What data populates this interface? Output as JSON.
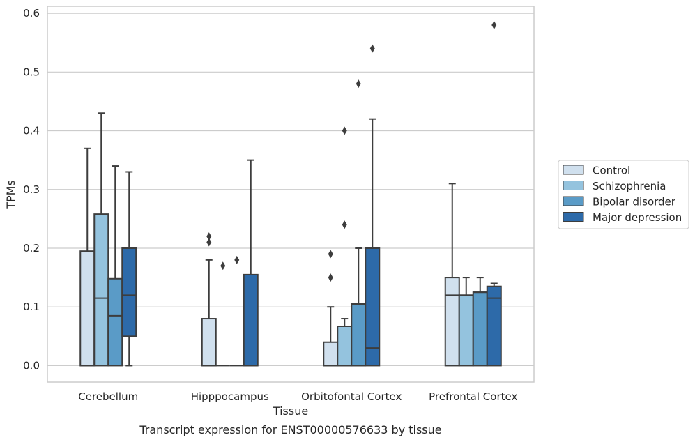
{
  "chart_data": {
    "type": "box",
    "title": "Transcript expression for ENST00000576633 by tissue",
    "xlabel": "Tissue",
    "ylabel": "TPMs",
    "ylim": [
      -0.028,
      0.612
    ],
    "yticks": [
      "0.0",
      "0.1",
      "0.2",
      "0.3",
      "0.4",
      "0.5",
      "0.6"
    ],
    "grid": true,
    "legend_position": "right",
    "categories": [
      "Cerebellum",
      "Hipppocampus",
      "Orbitofontal Cortex",
      "Prefrontal Cortex"
    ],
    "series": [
      {
        "name": "Control",
        "color": "#d0e0ee"
      },
      {
        "name": "Schizophrenia",
        "color": "#94c3de"
      },
      {
        "name": "Bipolar disorder",
        "color": "#5a9bc7"
      },
      {
        "name": "Major depression",
        "color": "#2d6aa9"
      }
    ],
    "boxes": [
      [
        {
          "q1": 0.0,
          "median": 0.0,
          "q3": 0.195,
          "whisker_low": 0.0,
          "whisker_high": 0.37,
          "outliers": []
        },
        {
          "q1": 0.0,
          "median": 0.115,
          "q3": 0.258,
          "whisker_low": 0.0,
          "whisker_high": 0.43,
          "outliers": []
        },
        {
          "q1": 0.0,
          "median": 0.085,
          "q3": 0.148,
          "whisker_low": 0.0,
          "whisker_high": 0.34,
          "outliers": []
        },
        {
          "q1": 0.05,
          "median": 0.12,
          "q3": 0.2,
          "whisker_low": 0.0,
          "whisker_high": 0.33,
          "outliers": []
        }
      ],
      [
        {
          "q1": 0.0,
          "median": 0.0,
          "q3": 0.08,
          "whisker_low": 0.0,
          "whisker_high": 0.18,
          "outliers": [
            0.21,
            0.22
          ]
        },
        {
          "q1": 0.0,
          "median": 0.0,
          "q3": 0.0,
          "whisker_low": 0.0,
          "whisker_high": 0.0,
          "outliers": [
            0.17
          ]
        },
        {
          "q1": 0.0,
          "median": 0.0,
          "q3": 0.0,
          "whisker_low": 0.0,
          "whisker_high": 0.0,
          "outliers": [
            0.18
          ]
        },
        {
          "q1": 0.0,
          "median": 0.0,
          "q3": 0.155,
          "whisker_low": 0.0,
          "whisker_high": 0.35,
          "outliers": []
        }
      ],
      [
        {
          "q1": 0.0,
          "median": 0.0,
          "q3": 0.04,
          "whisker_low": 0.0,
          "whisker_high": 0.1,
          "outliers": [
            0.15,
            0.19
          ]
        },
        {
          "q1": 0.0,
          "median": 0.0,
          "q3": 0.067,
          "whisker_low": 0.0,
          "whisker_high": 0.08,
          "outliers": [
            0.24,
            0.4
          ]
        },
        {
          "q1": 0.0,
          "median": 0.0,
          "q3": 0.105,
          "whisker_low": 0.0,
          "whisker_high": 0.2,
          "outliers": [
            0.48
          ]
        },
        {
          "q1": 0.0,
          "median": 0.03,
          "q3": 0.2,
          "whisker_low": 0.0,
          "whisker_high": 0.42,
          "outliers": [
            0.54
          ]
        }
      ],
      [
        {
          "q1": 0.0,
          "median": 0.12,
          "q3": 0.15,
          "whisker_low": 0.0,
          "whisker_high": 0.31,
          "outliers": []
        },
        {
          "q1": 0.0,
          "median": 0.12,
          "q3": 0.12,
          "whisker_low": 0.0,
          "whisker_high": 0.15,
          "outliers": []
        },
        {
          "q1": 0.0,
          "median": 0.125,
          "q3": 0.125,
          "whisker_low": 0.0,
          "whisker_high": 0.15,
          "outliers": []
        },
        {
          "q1": 0.0,
          "median": 0.115,
          "q3": 0.135,
          "whisker_low": 0.0,
          "whisker_high": 0.14,
          "outliers": [
            0.58
          ]
        }
      ]
    ]
  }
}
